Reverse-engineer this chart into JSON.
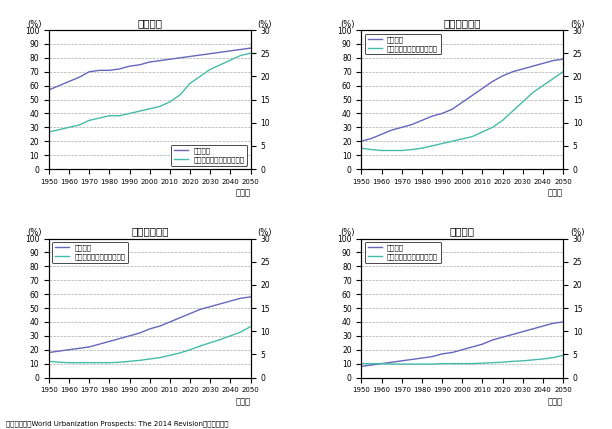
{
  "titles": [
    "高所得国",
    "上位中所得国",
    "下位中所得国",
    "低所得国"
  ],
  "years": [
    1950,
    1955,
    1960,
    1965,
    1970,
    1975,
    1980,
    1985,
    1990,
    1995,
    2000,
    2005,
    2010,
    2015,
    2020,
    2025,
    2030,
    2035,
    2040,
    2045,
    2050
  ],
  "urban_rates": [
    [
      57,
      60,
      63,
      66,
      70,
      71,
      71,
      72,
      74,
      75,
      77,
      78,
      79,
      80,
      81,
      82,
      83,
      84,
      85,
      86,
      87
    ],
    [
      20,
      22,
      25,
      28,
      30,
      32,
      35,
      38,
      40,
      43,
      48,
      53,
      58,
      63,
      67,
      70,
      72,
      74,
      76,
      78,
      79
    ],
    [
      18,
      19,
      20,
      21,
      22,
      24,
      26,
      28,
      30,
      32,
      35,
      37,
      40,
      43,
      46,
      49,
      51,
      53,
      55,
      57,
      58
    ],
    [
      8,
      9,
      10,
      11,
      12,
      13,
      14,
      15,
      17,
      18,
      20,
      22,
      24,
      27,
      29,
      31,
      33,
      35,
      37,
      39,
      40
    ]
  ],
  "elderly_rates": [
    [
      8,
      8.5,
      9,
      9.5,
      10.5,
      11,
      11.5,
      11.5,
      12,
      12.5,
      13,
      13.5,
      14.5,
      16,
      18.5,
      20,
      21.5,
      22.5,
      23.5,
      24.5,
      25
    ],
    [
      4.5,
      4.2,
      4.0,
      4.0,
      4.0,
      4.2,
      4.5,
      5.0,
      5.5,
      6.0,
      6.5,
      7.0,
      8.0,
      9.0,
      10.5,
      12.5,
      14.5,
      16.5,
      18.0,
      19.5,
      21
    ],
    [
      3.5,
      3.3,
      3.2,
      3.2,
      3.2,
      3.2,
      3.2,
      3.3,
      3.5,
      3.7,
      4.0,
      4.3,
      4.8,
      5.3,
      6.0,
      6.8,
      7.5,
      8.2,
      9.0,
      9.8,
      11
    ],
    [
      3.0,
      3.0,
      3.0,
      2.9,
      2.9,
      2.9,
      2.9,
      2.9,
      3.0,
      3.0,
      3.0,
      3.0,
      3.1,
      3.2,
      3.3,
      3.5,
      3.6,
      3.8,
      4.0,
      4.3,
      4.8
    ]
  ],
  "urban_color": "#6666bb",
  "elderly_color": "#44bbaa",
  "left_ylim": [
    0,
    100
  ],
  "right_ylim": [
    0,
    30
  ],
  "left_yticks": [
    0,
    10,
    20,
    30,
    40,
    50,
    60,
    70,
    80,
    90,
    100
  ],
  "right_yticks": [
    0,
    5,
    10,
    15,
    20,
    25,
    30
  ],
  "xticks": [
    1950,
    1960,
    1970,
    1980,
    1990,
    2000,
    2010,
    2020,
    2030,
    2040,
    2050
  ],
  "legend_urban": "都市化率",
  "legend_elderly": "高齢者人口比率（右目盛）",
  "xlabel": "（年）",
  "left_ylabel": "(%)",
  "right_ylabel": "(%)",
  "source_text": "資料：国連「World Urbanization Prospects: The 2014 Revision」から作成。",
  "legend_positions": [
    "lower right",
    "upper left",
    "upper left",
    "upper left"
  ],
  "background_color": "#ffffff"
}
